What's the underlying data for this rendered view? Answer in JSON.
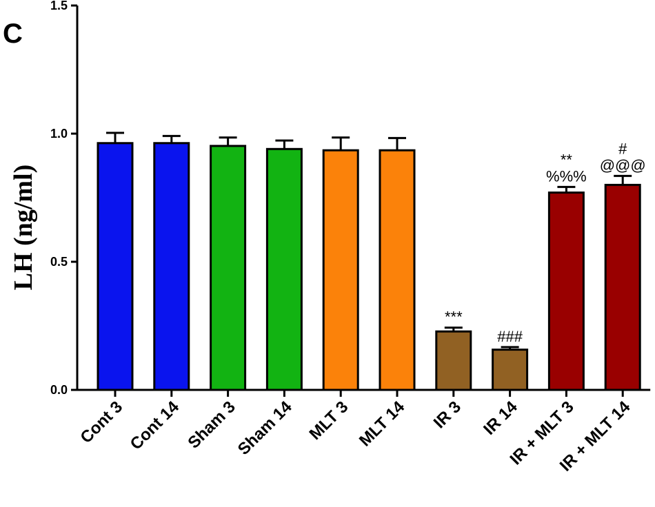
{
  "panel_label": "C",
  "chart_data": {
    "type": "bar",
    "ylabel": "LH (ng/ml)",
    "ylim": [
      0,
      1.5
    ],
    "yticks": [
      "0.0",
      "0.5",
      "1.0",
      "1.5"
    ],
    "categories": [
      "Cont 3",
      "Cont 14",
      "Sham 3",
      "Sham 14",
      "MLT 3",
      "MLT 14",
      "IR 3",
      "IR 14",
      "IR + MLT 3",
      "IR + MLT 14"
    ],
    "values": [
      0.963,
      0.963,
      0.952,
      0.94,
      0.935,
      0.935,
      0.228,
      0.157,
      0.77,
      0.8
    ],
    "errors": [
      0.04,
      0.028,
      0.033,
      0.033,
      0.05,
      0.048,
      0.015,
      0.01,
      0.022,
      0.035
    ],
    "colors": [
      "#0a14ee",
      "#0a14ee",
      "#12b312",
      "#12b312",
      "#fb820a",
      "#fb820a",
      "#916123",
      "#916123",
      "#990000",
      "#990000"
    ],
    "annotations": [
      {
        "bar": 6,
        "lines": [
          "***"
        ]
      },
      {
        "bar": 7,
        "lines": [
          "###"
        ]
      },
      {
        "bar": 8,
        "lines": [
          "**",
          "%%%"
        ]
      },
      {
        "bar": 9,
        "lines": [
          "#",
          "@@@"
        ]
      }
    ]
  }
}
